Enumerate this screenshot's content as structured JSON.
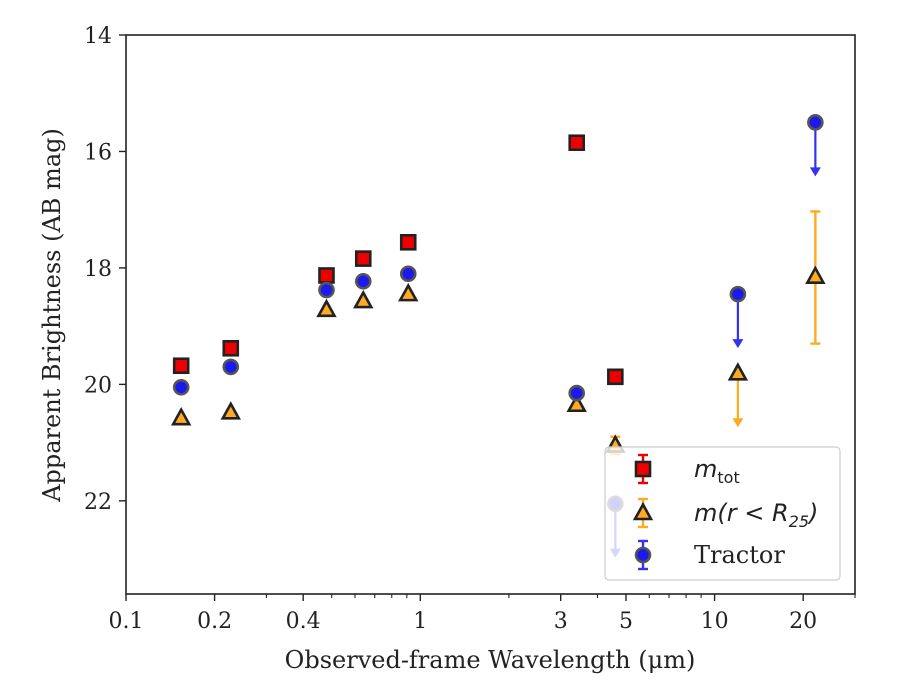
{
  "chart_data": {
    "type": "scatter",
    "xlabel": "Observed-frame Wavelength (μm)",
    "ylabel": "Apparent Brightness (AB mag)",
    "xscale": "log",
    "xlim": [
      0.1,
      30
    ],
    "ylim": [
      23.6,
      14
    ],
    "y_inverted": true,
    "grid": false,
    "legend_position": "lower-right",
    "xtick_labels": [
      {
        "value": 0.1,
        "label": "0.1"
      },
      {
        "value": 0.2,
        "label": "0.2"
      },
      {
        "value": 0.4,
        "label": "0.4"
      },
      {
        "value": 1,
        "label": "1"
      },
      {
        "value": 3,
        "label": "3"
      },
      {
        "value": 5,
        "label": "5"
      },
      {
        "value": 10,
        "label": "10"
      },
      {
        "value": 20,
        "label": "20"
      }
    ],
    "xtick_minor": [
      0.3,
      0.5,
      0.6,
      0.7,
      0.8,
      0.9,
      2,
      4,
      6,
      7,
      8,
      9,
      30
    ],
    "ytick_labels": [
      {
        "value": 14,
        "label": "14"
      },
      {
        "value": 16,
        "label": "16"
      },
      {
        "value": 18,
        "label": "18"
      },
      {
        "value": 20,
        "label": "20"
      },
      {
        "value": 22,
        "label": "22"
      }
    ],
    "series": [
      {
        "name": "m_tot",
        "legend_main": "m",
        "legend_sub": "tot",
        "marker": "square",
        "face_color": "#ee0000",
        "edge_color": "#222222",
        "error_color": "#ee0000",
        "points": [
          {
            "x": 0.154,
            "y": 19.68
          },
          {
            "x": 0.227,
            "y": 19.38
          },
          {
            "x": 0.48,
            "y": 18.13
          },
          {
            "x": 0.64,
            "y": 17.84
          },
          {
            "x": 0.91,
            "y": 17.56
          },
          {
            "x": 3.4,
            "y": 15.85
          },
          {
            "x": 4.6,
            "y": 19.87
          }
        ]
      },
      {
        "name": "m(r < R25)",
        "legend_main": "m(r < R",
        "legend_sub": "25",
        "legend_tail": ")",
        "marker": "triangle",
        "face_color": "#ffaa22",
        "edge_color": "#222222",
        "error_color": "#ffaa22",
        "points": [
          {
            "x": 0.154,
            "y": 20.58
          },
          {
            "x": 0.227,
            "y": 20.48
          },
          {
            "x": 0.48,
            "y": 18.72
          },
          {
            "x": 0.64,
            "y": 18.57
          },
          {
            "x": 0.91,
            "y": 18.45
          },
          {
            "x": 3.4,
            "y": 20.35
          },
          {
            "x": 4.6,
            "y": 21.05,
            "yerr": 0.15
          },
          {
            "x": 12,
            "y": 19.81,
            "upper_limit": true
          },
          {
            "x": 22,
            "y": 18.15,
            "yerr_low": 1.12,
            "yerr_high": 1.15
          }
        ]
      },
      {
        "name": "Tractor",
        "legend_main": "Tractor",
        "marker": "circle",
        "face_color": "#1a1aee",
        "edge_color": "#555555",
        "error_color": "#3333ee",
        "points": [
          {
            "x": 0.154,
            "y": 20.05
          },
          {
            "x": 0.227,
            "y": 19.7
          },
          {
            "x": 0.48,
            "y": 18.38
          },
          {
            "x": 0.64,
            "y": 18.23
          },
          {
            "x": 0.91,
            "y": 18.1
          },
          {
            "x": 3.4,
            "y": 20.15
          },
          {
            "x": 4.6,
            "y": 22.05,
            "upper_limit": true
          },
          {
            "x": 12,
            "y": 18.45,
            "upper_limit": true
          },
          {
            "x": 22,
            "y": 15.5,
            "upper_limit": true
          }
        ]
      }
    ]
  }
}
